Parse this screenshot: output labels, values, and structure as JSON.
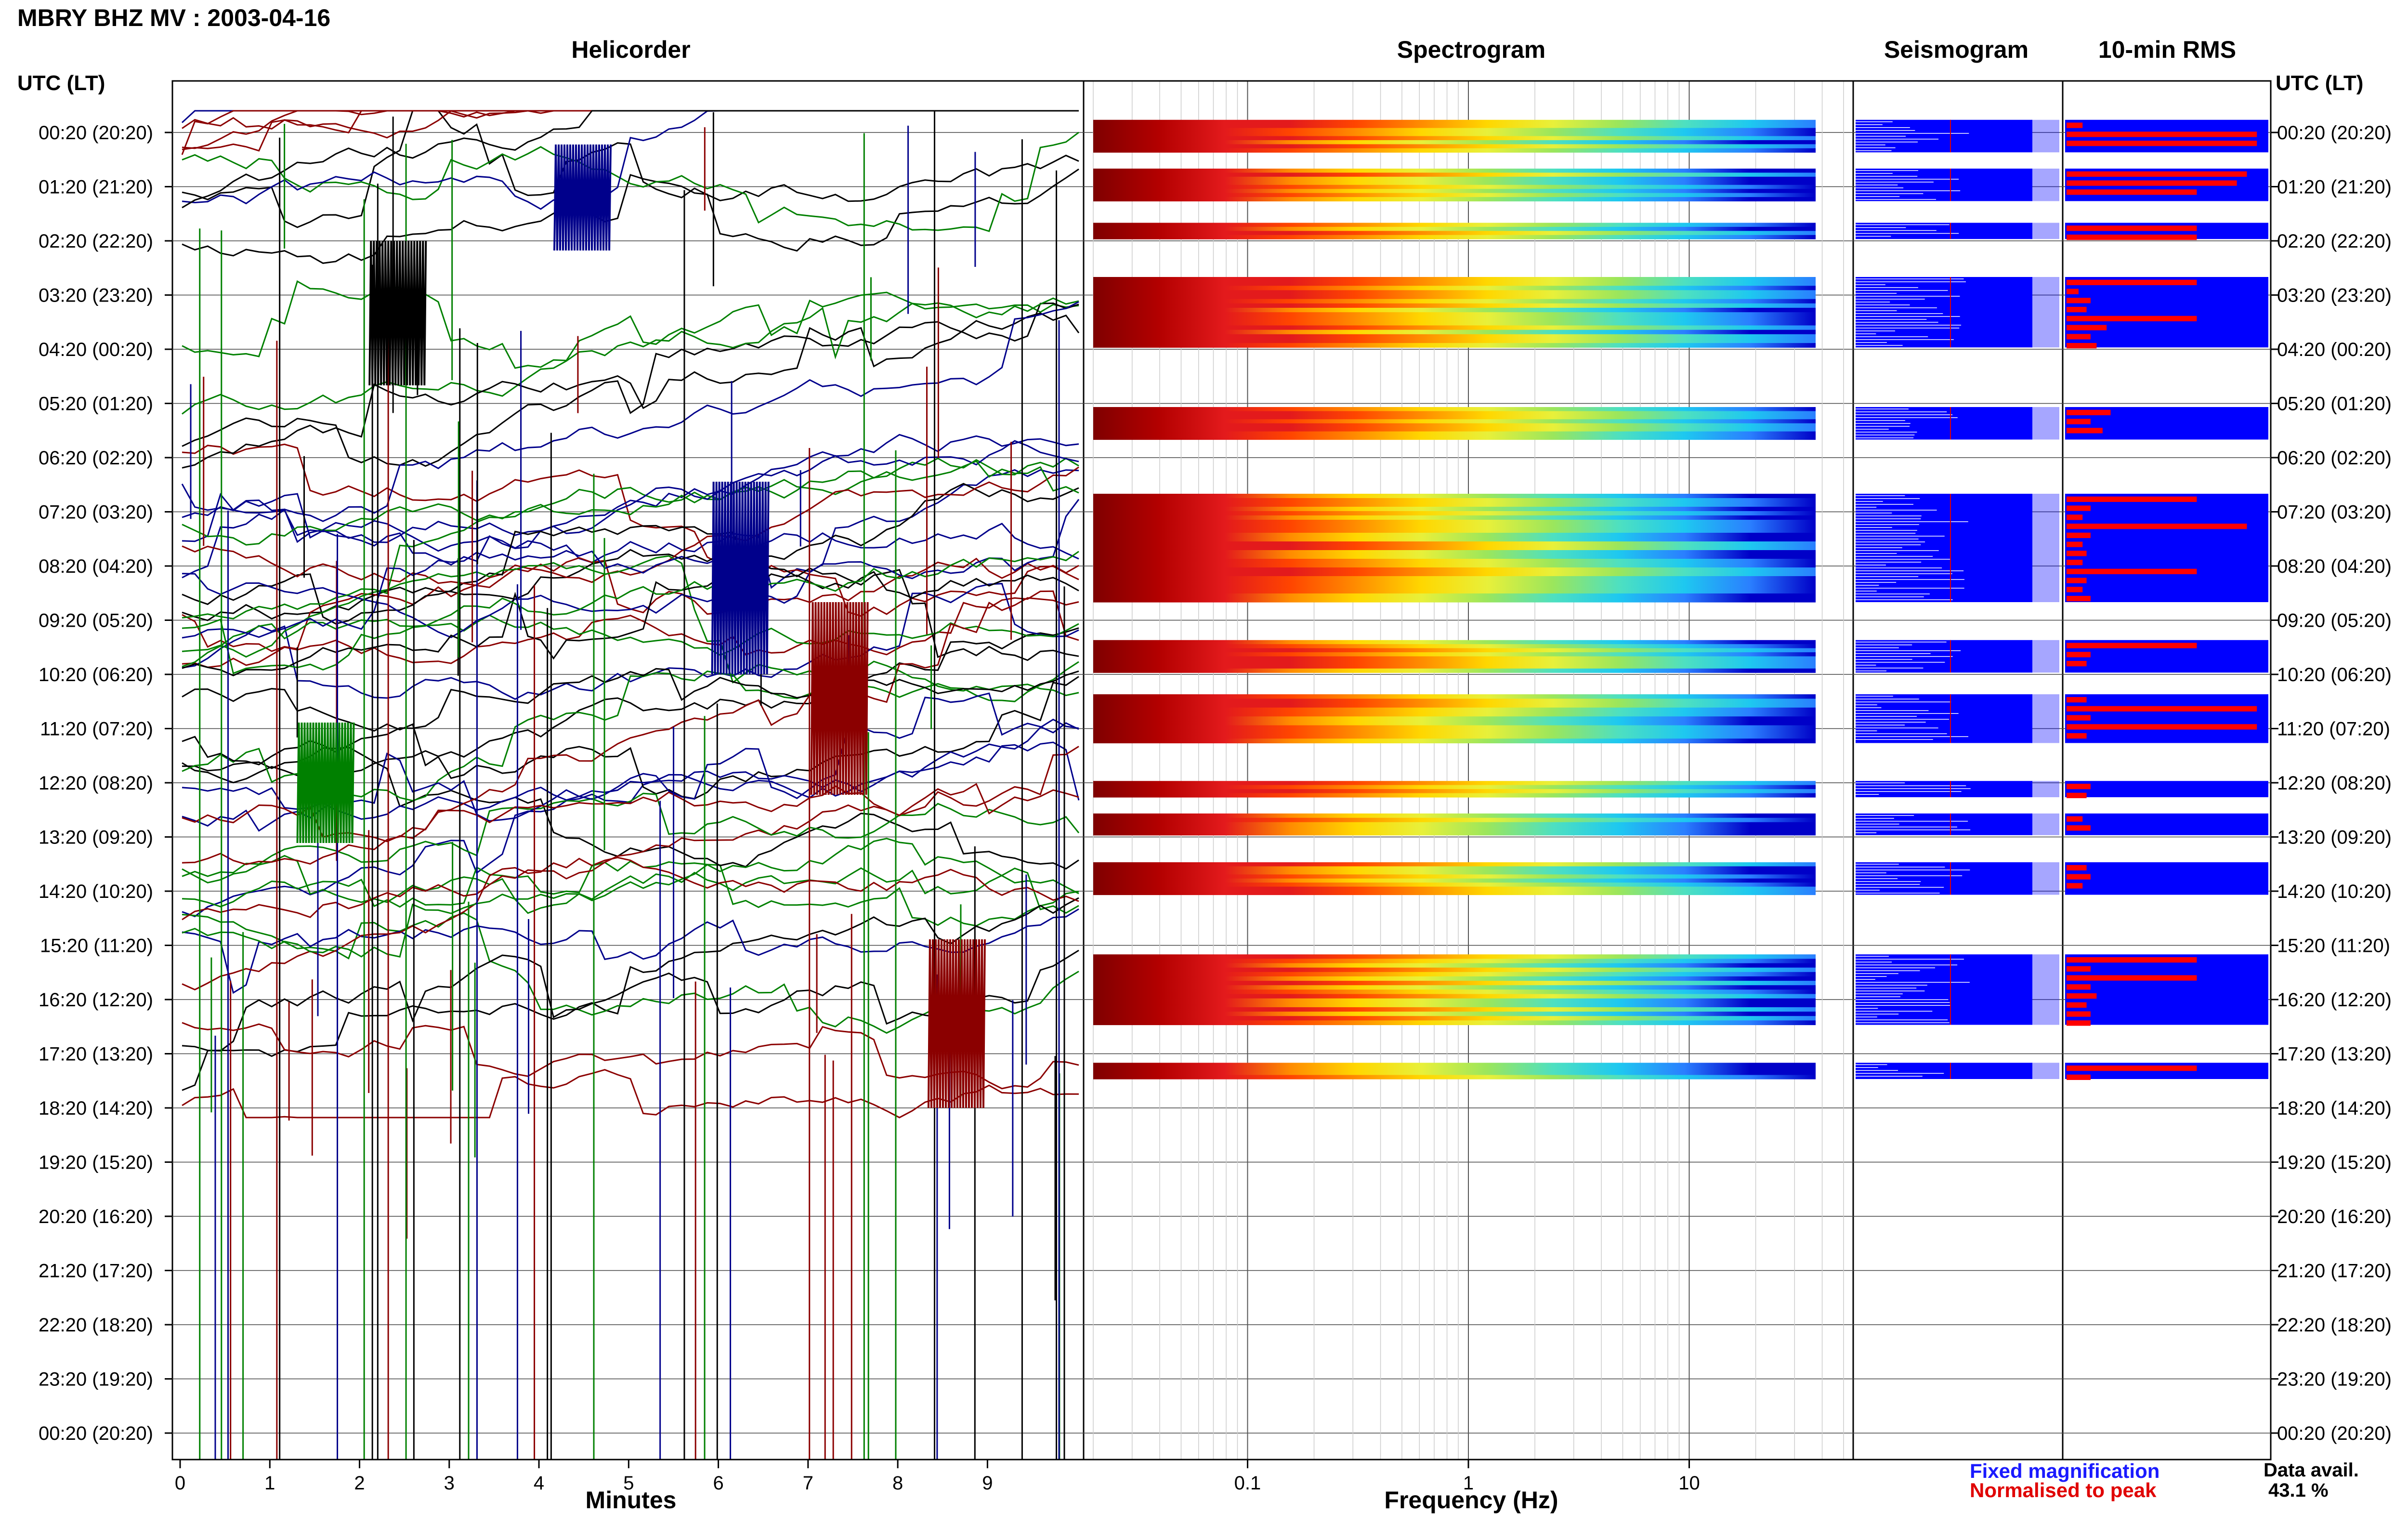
{
  "header": {
    "title": "MBRY BHZ MV : 2003-04-16"
  },
  "panels": {
    "helicorder": "Helicorder",
    "spectrogram": "Spectrogram",
    "seismogram": "Seismogram",
    "rms": "10-min RMS"
  },
  "axes": {
    "minutes_label": "Minutes",
    "frequency_label": "Frequency (Hz)",
    "left_header": "UTC (LT)",
    "right_header": "UTC (LT)"
  },
  "legend": {
    "fixed": "Fixed magnification",
    "normalised": "Normalised to peak",
    "fixed_color": "#1a1aff",
    "normalised_color": "#e00000"
  },
  "data_availability": {
    "label": "Data avail.",
    "value": "43.1 %"
  },
  "chart_data": {
    "type": "heatmap",
    "title": "MBRY BHZ MV : 2003-04-16",
    "row_labels": [
      "00:20 (20:20)",
      "01:20 (21:20)",
      "02:20 (22:20)",
      "03:20 (23:20)",
      "04:20 (00:20)",
      "05:20 (01:20)",
      "06:20 (02:20)",
      "07:20 (03:20)",
      "08:20 (04:20)",
      "09:20 (05:20)",
      "10:20 (06:20)",
      "11:20 (07:20)",
      "12:20 (08:20)",
      "13:20 (09:20)",
      "14:20 (10:20)",
      "15:20 (11:20)",
      "16:20 (12:20)",
      "17:20 (13:20)",
      "18:20 (14:20)",
      "19:20 (15:20)",
      "20:20 (16:20)",
      "21:20 (17:20)",
      "22:20 (18:20)",
      "23:20 (19:20)",
      "00:20 (20:20)"
    ],
    "helicorder": {
      "xlabel": "Minutes",
      "xlim": [
        0,
        10
      ],
      "x_ticks": [
        "0",
        "1",
        "2",
        "3",
        "4",
        "5",
        "6",
        "7",
        "8",
        "9"
      ],
      "trace_colors": [
        "#000000",
        "#8b0000",
        "#008000",
        "#00008b"
      ]
    },
    "spectrogram": {
      "xlabel": "Frequency (Hz)",
      "xscale": "log",
      "xlim": [
        0.02,
        50
      ],
      "x_ticks": [
        "0.1",
        "1",
        "10"
      ],
      "data_blocks_hours": [
        [
          0.1,
          0.7
        ],
        [
          1.0,
          1.6
        ],
        [
          2.0,
          2.3
        ],
        [
          3.0,
          4.3
        ],
        [
          5.4,
          6.0
        ],
        [
          7.0,
          9.0
        ],
        [
          9.7,
          10.3
        ],
        [
          10.7,
          11.6
        ],
        [
          12.3,
          12.6
        ],
        [
          12.9,
          13.3
        ],
        [
          13.8,
          14.4
        ],
        [
          15.5,
          16.8
        ],
        [
          17.5,
          17.8
        ]
      ]
    },
    "seismogram": {
      "series": [
        "Fixed magnification",
        "Normalised to peak"
      ]
    },
    "rms": {
      "bar_window_minutes": 10,
      "bars_relative": [
        0.08,
        0.95,
        0.95,
        0.9,
        0.85,
        0.65,
        0.65,
        0.65,
        0.65,
        0.06,
        0.12,
        0.1,
        0.65,
        0.2,
        0.12,
        0.15,
        0.22,
        0.12,
        0.18,
        0.65,
        0.12,
        0.08,
        0.9,
        0.12,
        0.08,
        0.1,
        0.08,
        0.65,
        0.1,
        0.08,
        0.12,
        0.65,
        0.12,
        0.1,
        0.1,
        0.95,
        0.12,
        0.95,
        0.1,
        0.12,
        0.1,
        0.08,
        0.12,
        0.1,
        0.12,
        0.08,
        0.65,
        0.12,
        0.65,
        0.12,
        0.15,
        0.1,
        0.12,
        0.12,
        0.65,
        0.12,
        0.1,
        0.12,
        0.1,
        0.65,
        0.12,
        0.08,
        0.65
      ]
    },
    "data_availability_percent": 43.1
  }
}
